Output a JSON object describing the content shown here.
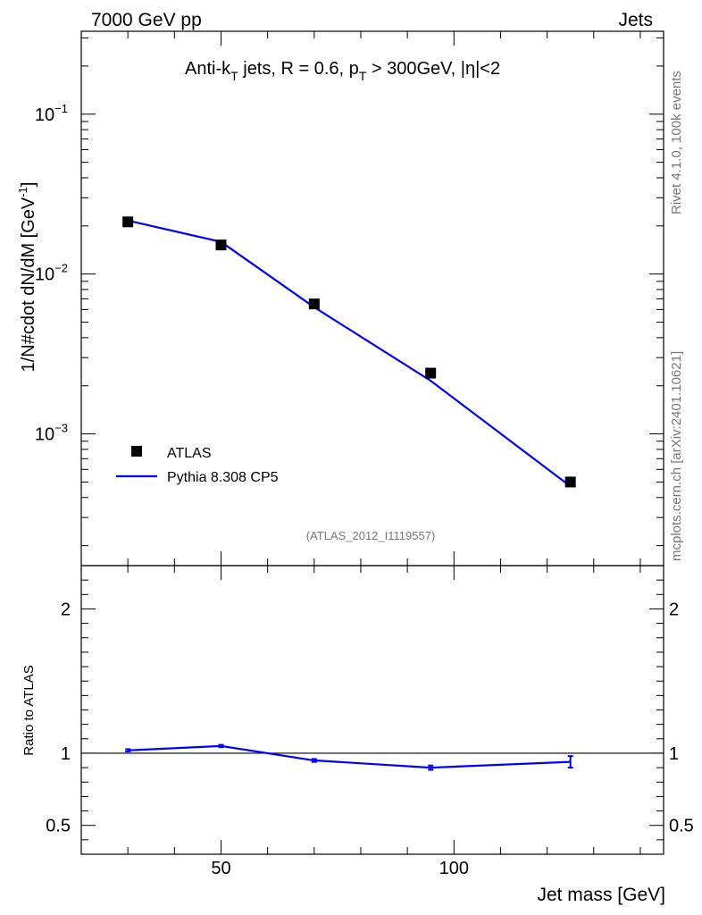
{
  "header": {
    "left": "7000 GeV pp",
    "right": "Jets"
  },
  "side_labels": {
    "rivet": "Rivet 4.1.0,  100k events",
    "mcplots": "mcplots.cern.ch [arXiv:2401.10621]"
  },
  "chart_data": [
    {
      "type": "line",
      "panel": "main",
      "title_parts": {
        "a": "Anti-k",
        "a_sub": "T",
        "b": " jets, R = 0.6, p",
        "b_sub": "T",
        "c": " > 300GeV, |η|<2"
      },
      "ylabel": "1/N#cdot dN/dM [GeV",
      "ylabel_sup": "-1",
      "ylabel_end": "]",
      "xlabel": "Jet mass [GeV]",
      "yscale": "log",
      "xlim": [
        20,
        145
      ],
      "ylim": [
        0.00015,
        0.33
      ],
      "y_ticks": [
        {
          "value": 0.1,
          "base": "10",
          "exp": "−1"
        },
        {
          "value": 0.01,
          "base": "10",
          "exp": "−2"
        },
        {
          "value": 0.001,
          "base": "10",
          "exp": "−3"
        }
      ],
      "annotation": "(ATLAS_2012_I1119557)",
      "legend": {
        "position": "lower-left"
      },
      "series": [
        {
          "name": "ATLAS",
          "style": "markers",
          "color": "#000000",
          "x": [
            30,
            50,
            70,
            95,
            125
          ],
          "y": [
            0.0212,
            0.0152,
            0.0065,
            0.0024,
            0.0005
          ]
        },
        {
          "name": "Pythia 8.308 CP5",
          "style": "line",
          "color": "#0000ff",
          "x": [
            30,
            50,
            70,
            95,
            125
          ],
          "y": [
            0.0216,
            0.0159,
            0.0062,
            0.00215,
            0.00047
          ]
        }
      ]
    },
    {
      "type": "line",
      "panel": "ratio",
      "ylabel": "Ratio to ATLAS",
      "xlim": [
        20,
        145
      ],
      "ylim": [
        0.3,
        2.3
      ],
      "y_ticks": [
        {
          "value": 0.5,
          "label": "0.5"
        },
        {
          "value": 1,
          "label": "1"
        },
        {
          "value": 2,
          "label": "2"
        }
      ],
      "x_ticks": [
        {
          "value": 50,
          "label": "50"
        },
        {
          "value": 100,
          "label": "100"
        }
      ],
      "reference": 1,
      "series": [
        {
          "name": "Pythia 8.308 CP5",
          "color": "#0000ff",
          "x": [
            30,
            50,
            70,
            95,
            125
          ],
          "y": [
            1.02,
            1.05,
            0.95,
            0.9,
            0.94
          ],
          "err": [
            0.008,
            0.008,
            0.01,
            0.015,
            0.04
          ]
        }
      ]
    }
  ]
}
